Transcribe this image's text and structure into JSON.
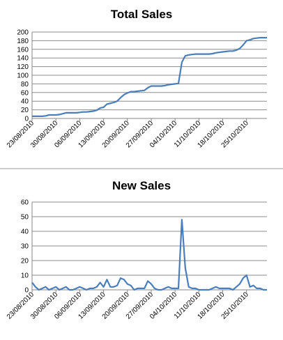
{
  "chart_data": [
    {
      "type": "line",
      "title": "Total Sales",
      "xlabel": "",
      "ylabel": "",
      "ylim": [
        0,
        200
      ],
      "yticks": [
        0,
        20,
        40,
        60,
        80,
        100,
        120,
        140,
        160,
        180,
        200
      ],
      "grid": true,
      "legend": "none",
      "line_color": "#4a7ebb",
      "tick_labels": [
        "23/08/2010",
        "30/08/2010",
        "06/09/2010",
        "13/09/2010",
        "20/09/2010",
        "27/09/2010",
        "04/10/2010",
        "11/10/2010",
        "18/10/2010",
        "25/10/2010"
      ],
      "x": [
        "23/08/2010",
        "24/08/2010",
        "25/08/2010",
        "26/08/2010",
        "27/08/2010",
        "28/08/2010",
        "29/08/2010",
        "30/08/2010",
        "31/08/2010",
        "01/09/2010",
        "02/09/2010",
        "03/09/2010",
        "04/09/2010",
        "05/09/2010",
        "06/09/2010",
        "07/09/2010",
        "08/09/2010",
        "09/09/2010",
        "10/09/2010",
        "11/09/2010",
        "12/09/2010",
        "13/09/2010",
        "14/09/2010",
        "15/09/2010",
        "16/09/2010",
        "17/09/2010",
        "18/09/2010",
        "19/09/2010",
        "20/09/2010",
        "21/09/2010",
        "22/09/2010",
        "23/09/2010",
        "24/09/2010",
        "25/09/2010",
        "26/09/2010",
        "27/09/2010",
        "28/09/2010",
        "29/09/2010",
        "30/09/2010",
        "01/10/2010",
        "02/10/2010",
        "03/10/2010",
        "04/10/2010",
        "05/10/2010",
        "06/10/2010",
        "07/10/2010",
        "08/10/2010",
        "09/10/2010",
        "10/10/2010",
        "11/10/2010",
        "12/10/2010",
        "13/10/2010",
        "14/10/2010",
        "15/10/2010",
        "16/10/2010",
        "17/10/2010",
        "18/10/2010",
        "19/10/2010",
        "20/10/2010",
        "21/10/2010",
        "22/10/2010",
        "23/10/2010",
        "24/10/2010",
        "25/10/2010",
        "26/10/2010",
        "27/10/2010",
        "28/10/2010",
        "29/10/2010",
        "30/10/2010",
        "31/10/2010"
      ],
      "values": [
        5,
        5,
        5,
        5,
        6,
        8,
        8,
        8,
        9,
        11,
        13,
        13,
        13,
        13,
        14,
        15,
        15,
        16,
        17,
        19,
        24,
        26,
        33,
        35,
        37,
        40,
        48,
        55,
        59,
        62,
        62,
        63,
        64,
        65,
        71,
        75,
        75,
        75,
        75,
        76,
        78,
        79,
        80,
        81,
        130,
        145,
        147,
        148,
        149,
        149,
        149,
        149,
        149,
        150,
        152,
        153,
        154,
        155,
        156,
        156,
        158,
        162,
        170,
        180,
        182,
        185,
        186,
        187,
        187,
        187
      ]
    },
    {
      "type": "line",
      "title": "New Sales",
      "xlabel": "",
      "ylabel": "",
      "ylim": [
        0,
        60
      ],
      "yticks": [
        0,
        10,
        20,
        30,
        40,
        50,
        60
      ],
      "grid": true,
      "legend": "none",
      "line_color": "#4a7ebb",
      "tick_labels": [
        "23/08/2010",
        "30/08/2010",
        "06/09/2010",
        "13/09/2010",
        "20/09/2010",
        "27/09/2010",
        "04/10/2010",
        "11/10/2010",
        "18/10/2010",
        "25/10/2010"
      ],
      "x": [
        "23/08/2010",
        "24/08/2010",
        "25/08/2010",
        "26/08/2010",
        "27/08/2010",
        "28/08/2010",
        "29/08/2010",
        "30/08/2010",
        "31/08/2010",
        "01/09/2010",
        "02/09/2010",
        "03/09/2010",
        "04/09/2010",
        "05/09/2010",
        "06/09/2010",
        "07/09/2010",
        "08/09/2010",
        "09/09/2010",
        "10/09/2010",
        "11/09/2010",
        "12/09/2010",
        "13/09/2010",
        "14/09/2010",
        "15/09/2010",
        "16/09/2010",
        "17/09/2010",
        "18/09/2010",
        "19/09/2010",
        "20/09/2010",
        "21/09/2010",
        "22/09/2010",
        "23/09/2010",
        "24/09/2010",
        "25/09/2010",
        "26/09/2010",
        "27/09/2010",
        "28/09/2010",
        "29/09/2010",
        "30/09/2010",
        "01/10/2010",
        "02/10/2010",
        "03/10/2010",
        "04/10/2010",
        "05/10/2010",
        "06/10/2010",
        "07/10/2010",
        "08/10/2010",
        "09/10/2010",
        "10/10/2010",
        "11/10/2010",
        "12/10/2010",
        "13/10/2010",
        "14/10/2010",
        "15/10/2010",
        "16/10/2010",
        "17/10/2010",
        "18/10/2010",
        "19/10/2010",
        "20/10/2010",
        "21/10/2010",
        "22/10/2010",
        "23/10/2010",
        "24/10/2010",
        "25/10/2010",
        "26/10/2010",
        "27/10/2010",
        "28/10/2010",
        "29/10/2010",
        "30/10/2010",
        "31/10/2010"
      ],
      "values": [
        5,
        2,
        0,
        1,
        2,
        0,
        1,
        2,
        0,
        1,
        2,
        0,
        0,
        1,
        2,
        1,
        0,
        1,
        1,
        2,
        5,
        2,
        7,
        2,
        2,
        3,
        8,
        7,
        4,
        3,
        0,
        1,
        1,
        1,
        6,
        4,
        1,
        0,
        0,
        1,
        2,
        1,
        1,
        1,
        48,
        15,
        2,
        1,
        1,
        0,
        0,
        0,
        0,
        1,
        2,
        1,
        1,
        1,
        1,
        0,
        2,
        4,
        8,
        10,
        2,
        3,
        1,
        1,
        0,
        0
      ]
    }
  ]
}
